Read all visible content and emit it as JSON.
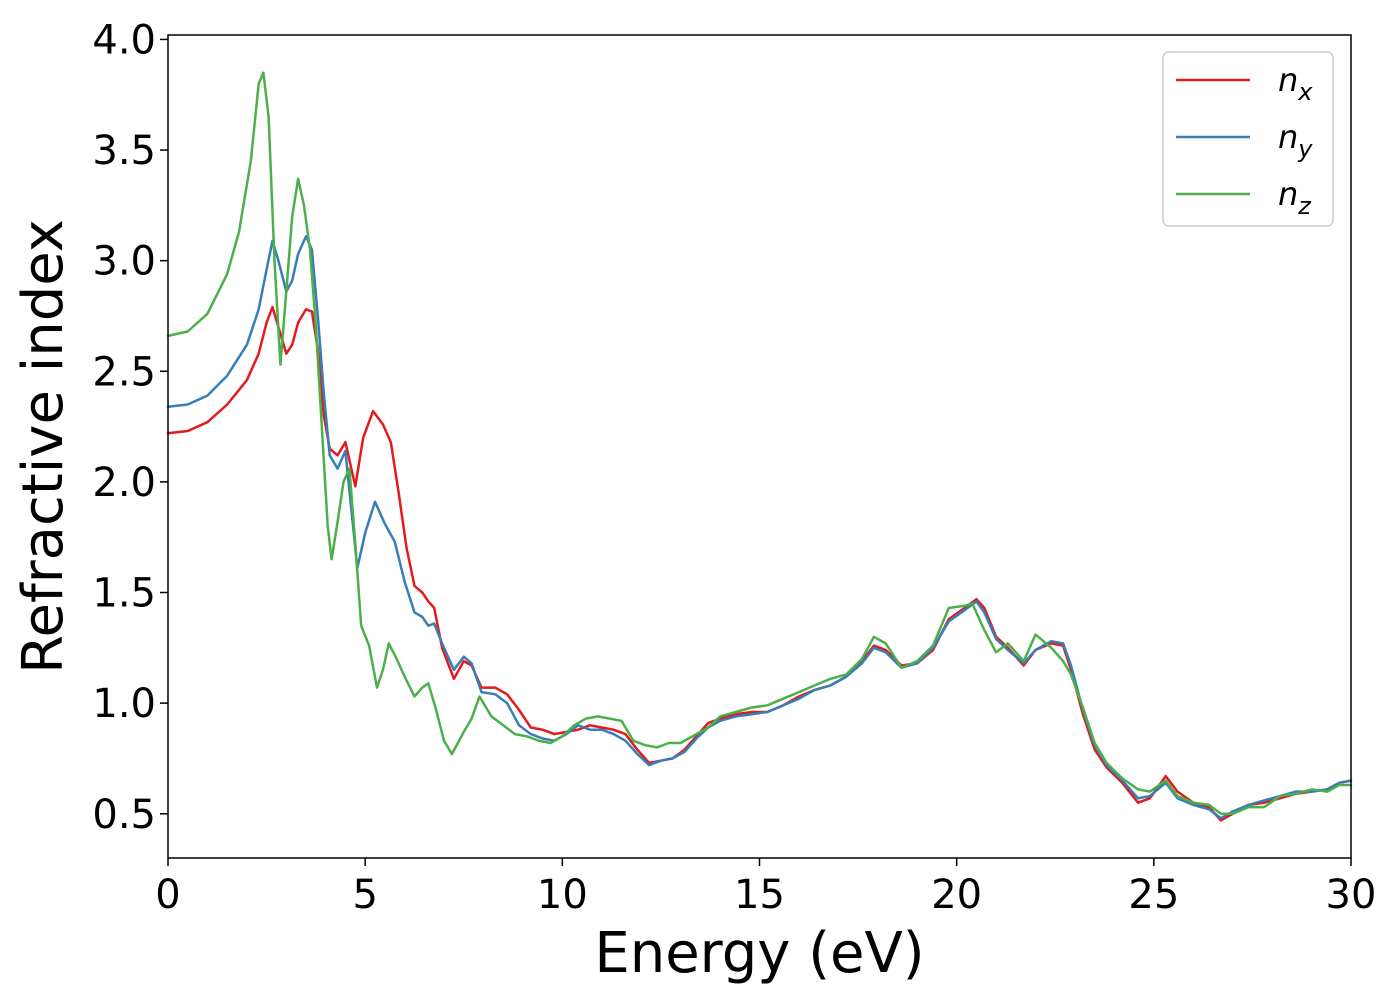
{
  "chart_data": {
    "type": "line",
    "title": "",
    "xlabel": "Energy (eV)",
    "ylabel": "Refractive index",
    "xlim": [
      0,
      30
    ],
    "ylim": [
      0.3,
      4.02
    ],
    "xticks": [
      0,
      5,
      10,
      15,
      20,
      25,
      30
    ],
    "yticks": [
      0.5,
      1.0,
      1.5,
      2.0,
      2.5,
      3.0,
      3.5,
      4.0
    ],
    "xtick_labels": [
      "0",
      "5",
      "10",
      "15",
      "20",
      "25",
      "30"
    ],
    "ytick_labels": [
      "0.5",
      "1.0",
      "1.5",
      "2.0",
      "2.5",
      "3.0",
      "3.5",
      "4.0"
    ],
    "grid": false,
    "legend_position": "top-right",
    "series": [
      {
        "name": "n",
        "subscript": "x",
        "color": "#e41a1c",
        "points": [
          [
            0,
            2.22
          ],
          [
            0.5,
            2.23
          ],
          [
            1,
            2.27
          ],
          [
            1.5,
            2.35
          ],
          [
            2,
            2.46
          ],
          [
            2.3,
            2.58
          ],
          [
            2.5,
            2.72
          ],
          [
            2.65,
            2.79
          ],
          [
            2.8,
            2.7
          ],
          [
            3.0,
            2.58
          ],
          [
            3.15,
            2.62
          ],
          [
            3.3,
            2.72
          ],
          [
            3.5,
            2.78
          ],
          [
            3.65,
            2.77
          ],
          [
            3.8,
            2.6
          ],
          [
            3.95,
            2.3
          ],
          [
            4.1,
            2.15
          ],
          [
            4.3,
            2.12
          ],
          [
            4.5,
            2.18
          ],
          [
            4.75,
            1.98
          ],
          [
            4.95,
            2.2
          ],
          [
            5.2,
            2.32
          ],
          [
            5.45,
            2.26
          ],
          [
            5.65,
            2.18
          ],
          [
            5.85,
            1.95
          ],
          [
            6.05,
            1.7
          ],
          [
            6.25,
            1.53
          ],
          [
            6.45,
            1.5
          ],
          [
            6.6,
            1.46
          ],
          [
            6.75,
            1.43
          ],
          [
            6.95,
            1.25
          ],
          [
            7.25,
            1.11
          ],
          [
            7.5,
            1.19
          ],
          [
            7.7,
            1.17
          ],
          [
            7.95,
            1.07
          ],
          [
            8.3,
            1.07
          ],
          [
            8.6,
            1.04
          ],
          [
            8.9,
            0.97
          ],
          [
            9.2,
            0.89
          ],
          [
            9.5,
            0.88
          ],
          [
            9.8,
            0.86
          ],
          [
            10.1,
            0.87
          ],
          [
            10.4,
            0.88
          ],
          [
            10.7,
            0.9
          ],
          [
            11.0,
            0.89
          ],
          [
            11.3,
            0.88
          ],
          [
            11.6,
            0.86
          ],
          [
            11.9,
            0.79
          ],
          [
            12.2,
            0.73
          ],
          [
            12.5,
            0.74
          ],
          [
            12.8,
            0.75
          ],
          [
            13.1,
            0.79
          ],
          [
            13.4,
            0.85
          ],
          [
            13.7,
            0.91
          ],
          [
            14.0,
            0.93
          ],
          [
            14.4,
            0.95
          ],
          [
            14.8,
            0.96
          ],
          [
            15.2,
            0.96
          ],
          [
            15.6,
            0.99
          ],
          [
            16.0,
            1.03
          ],
          [
            16.4,
            1.06
          ],
          [
            16.8,
            1.08
          ],
          [
            17.2,
            1.12
          ],
          [
            17.6,
            1.19
          ],
          [
            17.9,
            1.26
          ],
          [
            18.2,
            1.24
          ],
          [
            18.6,
            1.17
          ],
          [
            19.0,
            1.18
          ],
          [
            19.4,
            1.24
          ],
          [
            19.8,
            1.38
          ],
          [
            20.2,
            1.43
          ],
          [
            20.5,
            1.47
          ],
          [
            20.7,
            1.43
          ],
          [
            21.0,
            1.3
          ],
          [
            21.3,
            1.25
          ],
          [
            21.7,
            1.17
          ],
          [
            22.0,
            1.24
          ],
          [
            22.4,
            1.27
          ],
          [
            22.7,
            1.26
          ],
          [
            22.9,
            1.15
          ],
          [
            23.2,
            0.95
          ],
          [
            23.5,
            0.79
          ],
          [
            23.8,
            0.71
          ],
          [
            24.2,
            0.64
          ],
          [
            24.6,
            0.55
          ],
          [
            24.9,
            0.57
          ],
          [
            25.3,
            0.67
          ],
          [
            25.6,
            0.6
          ],
          [
            26.0,
            0.55
          ],
          [
            26.4,
            0.53
          ],
          [
            26.7,
            0.47
          ],
          [
            27.0,
            0.5
          ],
          [
            27.4,
            0.54
          ],
          [
            27.8,
            0.55
          ],
          [
            28.2,
            0.57
          ],
          [
            28.6,
            0.59
          ],
          [
            29.0,
            0.6
          ],
          [
            29.4,
            0.61
          ],
          [
            29.7,
            0.64
          ],
          [
            30,
            0.65
          ]
        ]
      },
      {
        "name": "n",
        "subscript": "y",
        "color": "#377eb8",
        "points": [
          [
            0,
            2.34
          ],
          [
            0.5,
            2.35
          ],
          [
            1,
            2.39
          ],
          [
            1.5,
            2.48
          ],
          [
            2,
            2.62
          ],
          [
            2.3,
            2.78
          ],
          [
            2.5,
            2.96
          ],
          [
            2.65,
            3.09
          ],
          [
            2.8,
            3.0
          ],
          [
            3.0,
            2.86
          ],
          [
            3.15,
            2.91
          ],
          [
            3.3,
            3.03
          ],
          [
            3.5,
            3.11
          ],
          [
            3.65,
            3.05
          ],
          [
            3.8,
            2.75
          ],
          [
            3.95,
            2.4
          ],
          [
            4.1,
            2.12
          ],
          [
            4.3,
            2.06
          ],
          [
            4.5,
            2.14
          ],
          [
            4.8,
            1.61
          ],
          [
            5.0,
            1.77
          ],
          [
            5.25,
            1.91
          ],
          [
            5.5,
            1.81
          ],
          [
            5.75,
            1.73
          ],
          [
            6.0,
            1.55
          ],
          [
            6.25,
            1.41
          ],
          [
            6.45,
            1.39
          ],
          [
            6.6,
            1.35
          ],
          [
            6.75,
            1.36
          ],
          [
            6.95,
            1.27
          ],
          [
            7.25,
            1.15
          ],
          [
            7.5,
            1.21
          ],
          [
            7.7,
            1.18
          ],
          [
            7.95,
            1.05
          ],
          [
            8.3,
            1.04
          ],
          [
            8.6,
            1.0
          ],
          [
            8.9,
            0.9
          ],
          [
            9.2,
            0.86
          ],
          [
            9.5,
            0.84
          ],
          [
            9.8,
            0.83
          ],
          [
            10.1,
            0.86
          ],
          [
            10.4,
            0.9
          ],
          [
            10.7,
            0.88
          ],
          [
            11.0,
            0.88
          ],
          [
            11.3,
            0.86
          ],
          [
            11.6,
            0.83
          ],
          [
            11.9,
            0.77
          ],
          [
            12.2,
            0.72
          ],
          [
            12.5,
            0.74
          ],
          [
            12.8,
            0.75
          ],
          [
            13.1,
            0.78
          ],
          [
            13.4,
            0.84
          ],
          [
            13.7,
            0.89
          ],
          [
            14.0,
            0.92
          ],
          [
            14.4,
            0.94
          ],
          [
            14.8,
            0.95
          ],
          [
            15.2,
            0.96
          ],
          [
            15.6,
            0.99
          ],
          [
            16.0,
            1.02
          ],
          [
            16.4,
            1.06
          ],
          [
            16.8,
            1.08
          ],
          [
            17.2,
            1.12
          ],
          [
            17.6,
            1.18
          ],
          [
            17.9,
            1.25
          ],
          [
            18.2,
            1.23
          ],
          [
            18.6,
            1.16
          ],
          [
            19.0,
            1.18
          ],
          [
            19.4,
            1.25
          ],
          [
            19.8,
            1.37
          ],
          [
            20.2,
            1.42
          ],
          [
            20.5,
            1.46
          ],
          [
            20.7,
            1.41
          ],
          [
            21.0,
            1.29
          ],
          [
            21.3,
            1.24
          ],
          [
            21.7,
            1.18
          ],
          [
            22.0,
            1.24
          ],
          [
            22.4,
            1.28
          ],
          [
            22.7,
            1.27
          ],
          [
            22.9,
            1.17
          ],
          [
            23.2,
            0.97
          ],
          [
            23.5,
            0.81
          ],
          [
            23.8,
            0.72
          ],
          [
            24.2,
            0.65
          ],
          [
            24.6,
            0.57
          ],
          [
            24.9,
            0.58
          ],
          [
            25.3,
            0.64
          ],
          [
            25.6,
            0.57
          ],
          [
            26.0,
            0.54
          ],
          [
            26.4,
            0.52
          ],
          [
            26.7,
            0.48
          ],
          [
            27.0,
            0.51
          ],
          [
            27.4,
            0.54
          ],
          [
            27.8,
            0.56
          ],
          [
            28.2,
            0.58
          ],
          [
            28.6,
            0.6
          ],
          [
            29.0,
            0.6
          ],
          [
            29.4,
            0.61
          ],
          [
            29.7,
            0.64
          ],
          [
            30,
            0.65
          ]
        ]
      },
      {
        "name": "n",
        "subscript": "z",
        "color": "#4daf4a",
        "points": [
          [
            0,
            2.66
          ],
          [
            0.5,
            2.68
          ],
          [
            1,
            2.76
          ],
          [
            1.5,
            2.94
          ],
          [
            1.8,
            3.13
          ],
          [
            2.1,
            3.45
          ],
          [
            2.3,
            3.8
          ],
          [
            2.42,
            3.85
          ],
          [
            2.55,
            3.65
          ],
          [
            2.7,
            3.0
          ],
          [
            2.85,
            2.53
          ],
          [
            3.0,
            2.86
          ],
          [
            3.15,
            3.2
          ],
          [
            3.3,
            3.37
          ],
          [
            3.45,
            3.25
          ],
          [
            3.6,
            3.05
          ],
          [
            3.75,
            2.7
          ],
          [
            3.9,
            2.25
          ],
          [
            4.05,
            1.8
          ],
          [
            4.15,
            1.65
          ],
          [
            4.3,
            1.82
          ],
          [
            4.45,
            2.0
          ],
          [
            4.6,
            2.06
          ],
          [
            4.75,
            1.72
          ],
          [
            4.9,
            1.35
          ],
          [
            5.1,
            1.26
          ],
          [
            5.3,
            1.07
          ],
          [
            5.45,
            1.15
          ],
          [
            5.6,
            1.27
          ],
          [
            5.8,
            1.2
          ],
          [
            6.0,
            1.12
          ],
          [
            6.25,
            1.03
          ],
          [
            6.45,
            1.07
          ],
          [
            6.6,
            1.09
          ],
          [
            6.8,
            0.97
          ],
          [
            7.0,
            0.83
          ],
          [
            7.2,
            0.77
          ],
          [
            7.5,
            0.87
          ],
          [
            7.7,
            0.93
          ],
          [
            7.9,
            1.03
          ],
          [
            8.2,
            0.94
          ],
          [
            8.5,
            0.9
          ],
          [
            8.8,
            0.86
          ],
          [
            9.1,
            0.85
          ],
          [
            9.4,
            0.83
          ],
          [
            9.7,
            0.82
          ],
          [
            10.0,
            0.85
          ],
          [
            10.3,
            0.9
          ],
          [
            10.6,
            0.93
          ],
          [
            10.9,
            0.94
          ],
          [
            11.2,
            0.93
          ],
          [
            11.5,
            0.92
          ],
          [
            11.8,
            0.83
          ],
          [
            12.1,
            0.81
          ],
          [
            12.4,
            0.8
          ],
          [
            12.7,
            0.82
          ],
          [
            13.0,
            0.82
          ],
          [
            13.3,
            0.85
          ],
          [
            13.7,
            0.89
          ],
          [
            14.0,
            0.94
          ],
          [
            14.4,
            0.96
          ],
          [
            14.8,
            0.98
          ],
          [
            15.2,
            0.99
          ],
          [
            15.6,
            1.02
          ],
          [
            16.0,
            1.05
          ],
          [
            16.4,
            1.08
          ],
          [
            16.8,
            1.11
          ],
          [
            17.2,
            1.13
          ],
          [
            17.6,
            1.2
          ],
          [
            17.9,
            1.3
          ],
          [
            18.2,
            1.27
          ],
          [
            18.6,
            1.16
          ],
          [
            19.0,
            1.19
          ],
          [
            19.4,
            1.26
          ],
          [
            19.8,
            1.43
          ],
          [
            20.2,
            1.44
          ],
          [
            20.4,
            1.45
          ],
          [
            20.7,
            1.33
          ],
          [
            21.0,
            1.23
          ],
          [
            21.3,
            1.27
          ],
          [
            21.7,
            1.19
          ],
          [
            22.0,
            1.31
          ],
          [
            22.4,
            1.25
          ],
          [
            22.7,
            1.19
          ],
          [
            22.9,
            1.13
          ],
          [
            23.2,
            0.98
          ],
          [
            23.5,
            0.82
          ],
          [
            23.8,
            0.73
          ],
          [
            24.2,
            0.66
          ],
          [
            24.6,
            0.61
          ],
          [
            24.9,
            0.6
          ],
          [
            25.3,
            0.65
          ],
          [
            25.6,
            0.58
          ],
          [
            26.0,
            0.55
          ],
          [
            26.4,
            0.54
          ],
          [
            26.7,
            0.5
          ],
          [
            27.0,
            0.5
          ],
          [
            27.4,
            0.53
          ],
          [
            27.8,
            0.53
          ],
          [
            28.2,
            0.58
          ],
          [
            28.6,
            0.59
          ],
          [
            29.0,
            0.61
          ],
          [
            29.4,
            0.6
          ],
          [
            29.7,
            0.63
          ],
          [
            30,
            0.63
          ]
        ]
      }
    ]
  }
}
